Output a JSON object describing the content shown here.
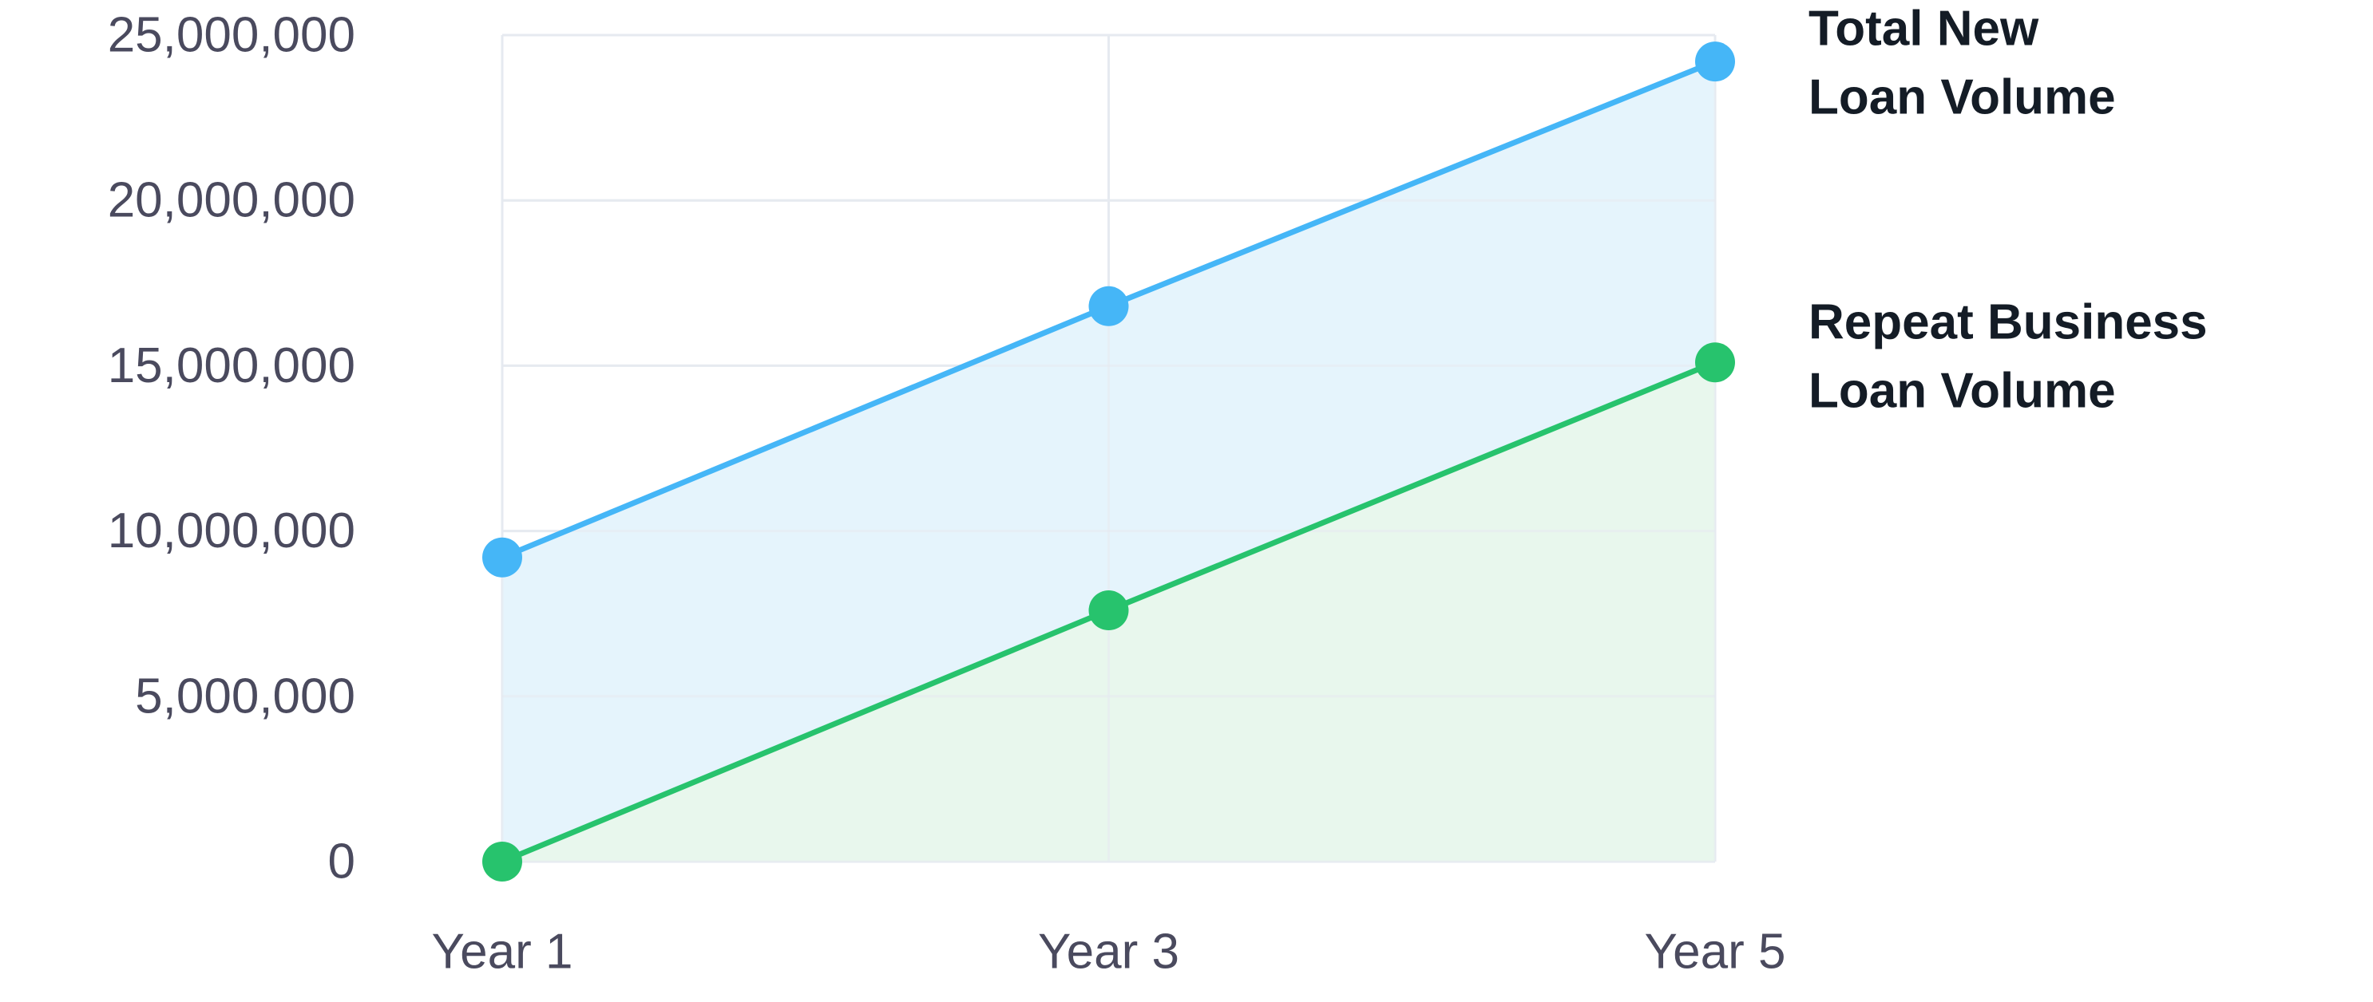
{
  "chart_data": {
    "type": "area",
    "categories": [
      "Year 1",
      "Year 3",
      "Year 5"
    ],
    "series": [
      {
        "name": "Total New Loan Volume",
        "label_lines": [
          "Total New",
          "Loan Volume"
        ],
        "values": [
          9200000,
          16800000,
          24200000
        ],
        "color": "#45b6f7",
        "fill": "#e5f4fc"
      },
      {
        "name": "Repeat Business Loan Volume",
        "label_lines": [
          "Repeat Business",
          "Loan Volume"
        ],
        "values": [
          0,
          7600000,
          15100000
        ],
        "color": "#27c36d",
        "fill": "#e8f7ed"
      }
    ],
    "y_ticks": [
      0,
      5000000,
      10000000,
      15000000,
      20000000,
      25000000
    ],
    "y_tick_labels": [
      "0",
      "5,000,000",
      "10,000,000",
      "15,000,000",
      "20,000,000",
      "25,000,000"
    ],
    "ylim": [
      0,
      25000000
    ],
    "title": "",
    "xlabel": "",
    "ylabel": "",
    "grid": true,
    "legend_position": "right",
    "grid_color": "#e6eaf0"
  }
}
